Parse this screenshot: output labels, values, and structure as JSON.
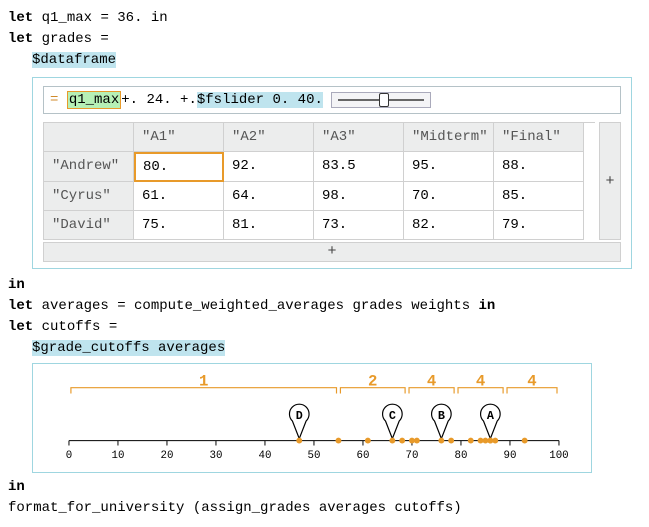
{
  "code": {
    "let": "let",
    "in": "in",
    "q1_decl_var": "q1_max",
    "q1_decl_eq": " = ",
    "q1_decl_val": "36.",
    "q1_decl_in": " in",
    "grades_decl": "grades =",
    "df_tag": "$dataframe",
    "formula_eq": "=",
    "formula_q1": "q1_max",
    "formula_mid": " +. 24. +. ",
    "formula_fs": "$fslider 0. 40.",
    "averages_line": " averages = compute_weighted_averages grades weights ",
    "cutoffs_decl": " cutoffs =",
    "gc_call": "$grade_cutoffs averages",
    "final_line": "format_for_university (assign_grades averages cutoffs)"
  },
  "slider": {
    "pos_pct": 52
  },
  "table": {
    "columns": [
      "\"A1\"",
      "\"A2\"",
      "\"A3\"",
      "\"Midterm\"",
      "\"Final\""
    ],
    "rows": [
      {
        "name": "\"Andrew\"",
        "cells": [
          "80.",
          "92.",
          "83.5",
          "95.",
          "88."
        ]
      },
      {
        "name": "\"Cyrus\"",
        "cells": [
          "61.",
          "64.",
          "98.",
          "70.",
          "85."
        ]
      },
      {
        "name": "\"David\"",
        "cells": [
          "75.",
          "81.",
          "73.",
          "82.",
          "79."
        ]
      }
    ],
    "selected": [
      0,
      0
    ],
    "plus": "+"
  },
  "chart": {
    "x_min": 0,
    "x_max": 100,
    "ticks": [
      0,
      10,
      20,
      30,
      40,
      50,
      60,
      70,
      80,
      90,
      100
    ],
    "brackets": [
      {
        "from": 0,
        "to": 55,
        "label": "1"
      },
      {
        "from": 55,
        "to": 69,
        "label": "2"
      },
      {
        "from": 69,
        "to": 79,
        "label": "4"
      },
      {
        "from": 79,
        "to": 89,
        "label": "4"
      },
      {
        "from": 89,
        "to": 100,
        "label": "4"
      }
    ],
    "markers": [
      {
        "x": 47,
        "label": "D"
      },
      {
        "x": 66,
        "label": "C"
      },
      {
        "x": 76,
        "label": "B"
      },
      {
        "x": 86,
        "label": "A"
      }
    ],
    "points": [
      47,
      55,
      61,
      66,
      68,
      70,
      71,
      76,
      78,
      82,
      84,
      85,
      86,
      86,
      87,
      93
    ],
    "colors": {
      "accent": "#e89a2a",
      "axis": "#000000",
      "bracket": "#e89a2a"
    }
  }
}
